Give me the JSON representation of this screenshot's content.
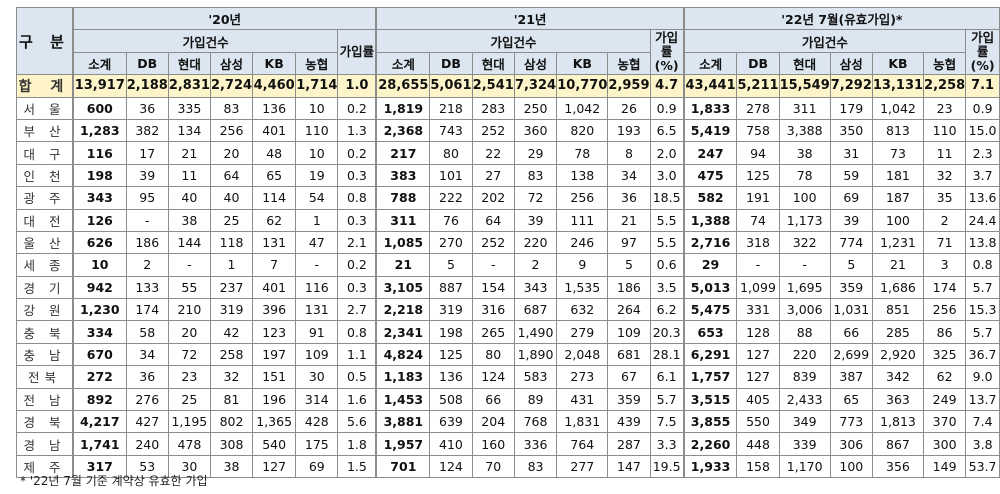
{
  "table": {
    "region_header": "구 분",
    "year_groups": [
      {
        "label": "'20년",
        "count_label": "가입건수",
        "rate_label": "가입률"
      },
      {
        "label": "'21년",
        "count_label": "가입건수",
        "rate_label": "가입률 (%)"
      },
      {
        "label": "'22년  7월(유효가입)*",
        "count_label": "가입건수",
        "rate_label": "가입률 (%)"
      }
    ],
    "sub_columns": [
      "소계",
      "DB",
      "현대",
      "삼성",
      "KB",
      "농협"
    ],
    "rows": [
      {
        "region": "합 계",
        "y20": [
          "13,917",
          "2,188",
          "2,831",
          "2,724",
          "4,460",
          "1,714",
          "1.0"
        ],
        "y21": [
          "28,655",
          "5,061",
          "2,541",
          "7,324",
          "10,770",
          "2,959",
          "4.7"
        ],
        "y22": [
          "43,441",
          "5,211",
          "15,549",
          "7,292",
          "13,131",
          "2,258",
          "7.1"
        ]
      },
      {
        "region": "서 울",
        "y20": [
          "600",
          "36",
          "335",
          "83",
          "136",
          "10",
          "0.2"
        ],
        "y21": [
          "1,819",
          "218",
          "283",
          "250",
          "1,042",
          "26",
          "0.9"
        ],
        "y22": [
          "1,833",
          "278",
          "311",
          "179",
          "1,042",
          "23",
          "0.9"
        ]
      },
      {
        "region": "부 산",
        "y20": [
          "1,283",
          "382",
          "134",
          "256",
          "401",
          "110",
          "1.3"
        ],
        "y21": [
          "2,368",
          "743",
          "252",
          "360",
          "820",
          "193",
          "6.5"
        ],
        "y22": [
          "5,419",
          "758",
          "3,388",
          "350",
          "813",
          "110",
          "15.0"
        ]
      },
      {
        "region": "대 구",
        "y20": [
          "116",
          "17",
          "21",
          "20",
          "48",
          "10",
          "0.2"
        ],
        "y21": [
          "217",
          "80",
          "22",
          "29",
          "78",
          "8",
          "2.0"
        ],
        "y22": [
          "247",
          "94",
          "38",
          "31",
          "73",
          "11",
          "2.3"
        ]
      },
      {
        "region": "인 천",
        "y20": [
          "198",
          "39",
          "11",
          "64",
          "65",
          "19",
          "0.3"
        ],
        "y21": [
          "383",
          "101",
          "27",
          "83",
          "138",
          "34",
          "3.0"
        ],
        "y22": [
          "475",
          "125",
          "78",
          "59",
          "181",
          "32",
          "3.7"
        ]
      },
      {
        "region": "광 주",
        "y20": [
          "343",
          "95",
          "40",
          "40",
          "114",
          "54",
          "0.8"
        ],
        "y21": [
          "788",
          "222",
          "202",
          "72",
          "256",
          "36",
          "18.5"
        ],
        "y22": [
          "582",
          "191",
          "100",
          "69",
          "187",
          "35",
          "13.6"
        ]
      },
      {
        "region": "대 전",
        "y20": [
          "126",
          "-",
          "38",
          "25",
          "62",
          "1",
          "0.3"
        ],
        "y21": [
          "311",
          "76",
          "64",
          "39",
          "111",
          "21",
          "5.5"
        ],
        "y22": [
          "1,388",
          "74",
          "1,173",
          "39",
          "100",
          "2",
          "24.4"
        ]
      },
      {
        "region": "울 산",
        "y20": [
          "626",
          "186",
          "144",
          "118",
          "131",
          "47",
          "2.1"
        ],
        "y21": [
          "1,085",
          "270",
          "252",
          "220",
          "246",
          "97",
          "5.5"
        ],
        "y22": [
          "2,716",
          "318",
          "322",
          "774",
          "1,231",
          "71",
          "13.8"
        ]
      },
      {
        "region": "세 종",
        "y20": [
          "10",
          "2",
          "-",
          "1",
          "7",
          "-",
          "0.2"
        ],
        "y21": [
          "21",
          "5",
          "-",
          "2",
          "9",
          "5",
          "0.6"
        ],
        "y22": [
          "29",
          "-",
          "-",
          "5",
          "21",
          "3",
          "0.8"
        ]
      },
      {
        "region": "경 기",
        "y20": [
          "942",
          "133",
          "55",
          "237",
          "401",
          "116",
          "0.3"
        ],
        "y21": [
          "3,105",
          "887",
          "154",
          "343",
          "1,535",
          "186",
          "3.5"
        ],
        "y22": [
          "5,013",
          "1,099",
          "1,695",
          "359",
          "1,686",
          "174",
          "5.7"
        ]
      },
      {
        "region": "강 원",
        "y20": [
          "1,230",
          "174",
          "210",
          "319",
          "396",
          "131",
          "2.7"
        ],
        "y21": [
          "2,218",
          "319",
          "316",
          "687",
          "632",
          "264",
          "6.2"
        ],
        "y22": [
          "5,475",
          "331",
          "3,006",
          "1,031",
          "851",
          "256",
          "15.3"
        ]
      },
      {
        "region": "충 북",
        "y20": [
          "334",
          "58",
          "20",
          "42",
          "123",
          "91",
          "0.8"
        ],
        "y21": [
          "2,341",
          "198",
          "265",
          "1,490",
          "279",
          "109",
          "20.3"
        ],
        "y22": [
          "653",
          "128",
          "88",
          "66",
          "285",
          "86",
          "5.7"
        ]
      },
      {
        "region": "충 남",
        "y20": [
          "670",
          "34",
          "72",
          "258",
          "197",
          "109",
          "1.1"
        ],
        "y21": [
          "4,824",
          "125",
          "80",
          "1,890",
          "2,048",
          "681",
          "28.1"
        ],
        "y22": [
          "6,291",
          "127",
          "220",
          "2,699",
          "2,920",
          "325",
          "36.7"
        ]
      },
      {
        "region": "전북",
        "y20": [
          "272",
          "36",
          "23",
          "32",
          "151",
          "30",
          "0.5"
        ],
        "y21": [
          "1,183",
          "136",
          "124",
          "583",
          "273",
          "67",
          "6.1"
        ],
        "y22": [
          "1,757",
          "127",
          "839",
          "387",
          "342",
          "62",
          "9.0"
        ]
      },
      {
        "region": "전 남",
        "y20": [
          "892",
          "276",
          "25",
          "81",
          "196",
          "314",
          "1.6"
        ],
        "y21": [
          "1,453",
          "508",
          "66",
          "89",
          "431",
          "359",
          "5.7"
        ],
        "y22": [
          "3,515",
          "405",
          "2,433",
          "65",
          "363",
          "249",
          "13.7"
        ]
      },
      {
        "region": "경 북",
        "y20": [
          "4,217",
          "427",
          "1,195",
          "802",
          "1,365",
          "428",
          "5.6"
        ],
        "y21": [
          "3,881",
          "639",
          "204",
          "768",
          "1,831",
          "439",
          "7.5"
        ],
        "y22": [
          "3,855",
          "550",
          "349",
          "773",
          "1,813",
          "370",
          "7.4"
        ]
      },
      {
        "region": "경 남",
        "y20": [
          "1,741",
          "240",
          "478",
          "308",
          "540",
          "175",
          "1.8"
        ],
        "y21": [
          "1,957",
          "410",
          "160",
          "336",
          "764",
          "287",
          "3.3"
        ],
        "y22": [
          "2,260",
          "448",
          "339",
          "306",
          "867",
          "300",
          "3.8"
        ]
      },
      {
        "region": "제 주",
        "y20": [
          "317",
          "53",
          "30",
          "38",
          "127",
          "69",
          "1.5"
        ],
        "y21": [
          "701",
          "124",
          "70",
          "83",
          "277",
          "147",
          "19.5"
        ],
        "y22": [
          "1,933",
          "158",
          "1,170",
          "100",
          "356",
          "149",
          "53.7"
        ]
      }
    ]
  },
  "footnote": "* '22년 7월 기준 계약상 유효한 가입",
  "colors": {
    "header_bg": "#dce6f1",
    "total_bg": "#fdf5c9",
    "border": "#8c8c8c"
  }
}
